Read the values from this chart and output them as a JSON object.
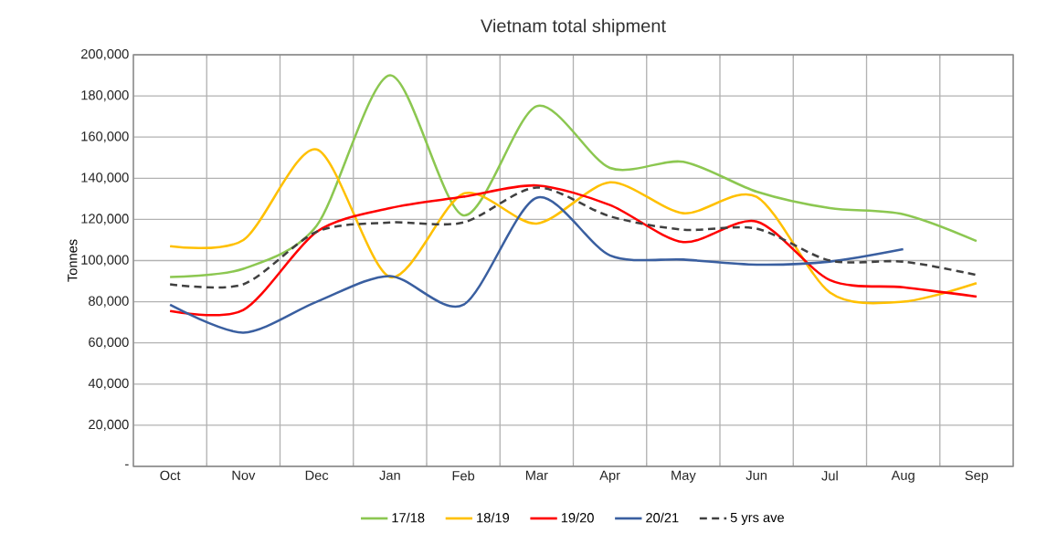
{
  "chart_data": {
    "type": "line",
    "title": "Vietnam total shipment",
    "ylabel": "Tonnes",
    "categories": [
      "Oct",
      "Nov",
      "Dec",
      "Jan",
      "Feb",
      "Mar",
      "Apr",
      "May",
      "Jun",
      "Jul",
      "Aug",
      "Sep"
    ],
    "series": [
      {
        "name": "17/18",
        "color": "#8cc751",
        "values": [
          92000,
          96000,
          117000,
          190000,
          122000,
          175000,
          145000,
          148000,
          133500,
          125500,
          122500,
          109500
        ]
      },
      {
        "name": "18/19",
        "color": "#ffc000",
        "values": [
          107000,
          110000,
          154000,
          92000,
          132500,
          118000,
          138000,
          123000,
          131000,
          84500,
          80000,
          89000
        ]
      },
      {
        "name": "19/20",
        "color": "#ff0000",
        "values": [
          75500,
          76000,
          114000,
          125500,
          131000,
          136500,
          127000,
          109000,
          119000,
          90500,
          87000,
          82500
        ]
      },
      {
        "name": "20/21",
        "color": "#3a5fa0",
        "values": [
          78500,
          65000,
          80000,
          92500,
          78500,
          130500,
          102500,
          100500,
          98000,
          99500,
          105500,
          null
        ]
      },
      {
        "name": "5 yrs ave",
        "color": "#404040",
        "line_style": "dashed",
        "values": [
          88500,
          88500,
          114000,
          118500,
          118500,
          135500,
          121500,
          115000,
          115500,
          100000,
          99500,
          93000
        ]
      }
    ],
    "ylim": [
      0,
      200000
    ],
    "yticks": [
      {
        "value": 0,
        "label": "-"
      },
      {
        "value": 20000,
        "label": "20,000"
      },
      {
        "value": 40000,
        "label": "40,000"
      },
      {
        "value": 60000,
        "label": "60,000"
      },
      {
        "value": 80000,
        "label": "80,000"
      },
      {
        "value": 100000,
        "label": "100,000"
      },
      {
        "value": 120000,
        "label": "120,000"
      },
      {
        "value": 140000,
        "label": "140,000"
      },
      {
        "value": 160000,
        "label": "160,000"
      },
      {
        "value": 180000,
        "label": "180,000"
      },
      {
        "value": 200000,
        "label": "200,000"
      }
    ],
    "grid": true,
    "legend": "bottom",
    "marker": "none",
    "line_style": "solid"
  }
}
